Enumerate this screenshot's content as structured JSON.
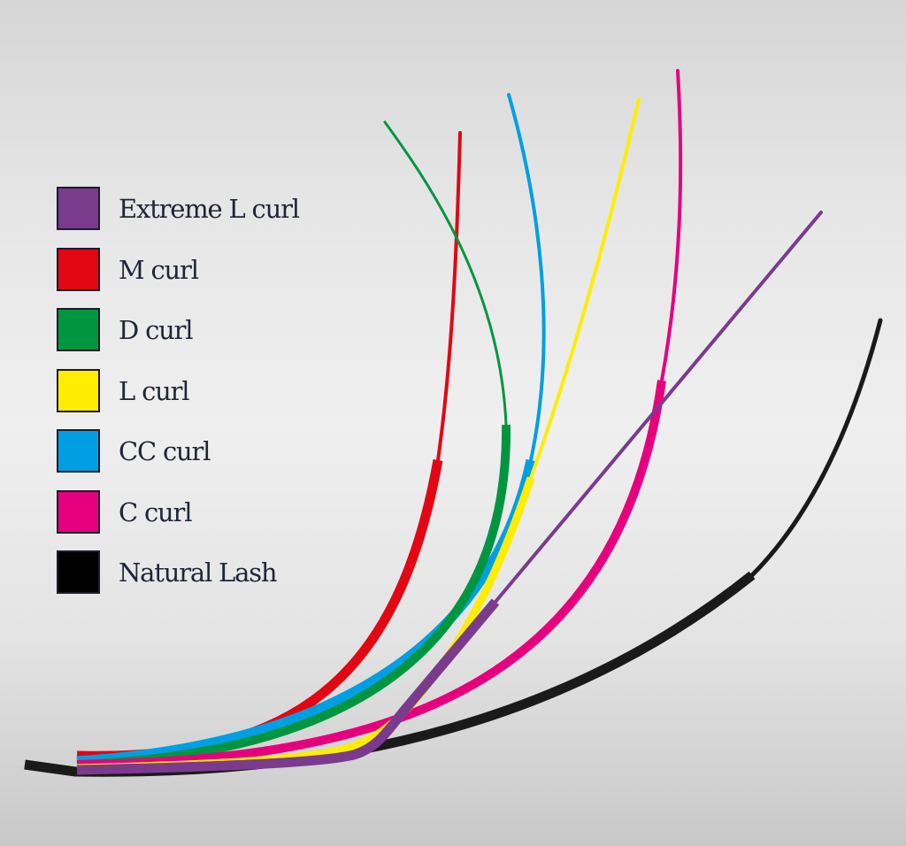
{
  "legend": {
    "items": [
      {
        "label": "Extreme L curl",
        "color": "#7b3b8d"
      },
      {
        "label": "M curl",
        "color": "#e30613"
      },
      {
        "label": "D curl",
        "color": "#009640"
      },
      {
        "label": "L curl",
        "color": "#ffed00"
      },
      {
        "label": "CC curl",
        "color": "#009fe3"
      },
      {
        "label": "C curl",
        "color": "#e6007e"
      },
      {
        "label": "Natural Lash",
        "color": "#000000"
      }
    ]
  },
  "lashes": [
    {
      "curl": "Natural Lash",
      "color": "#1a1a1a"
    },
    {
      "curl": "M curl",
      "color": "#e30613"
    },
    {
      "curl": "CC curl",
      "color": "#009fe3"
    },
    {
      "curl": "D curl",
      "color": "#009640"
    },
    {
      "curl": "C curl",
      "color": "#e6007e"
    },
    {
      "curl": "L curl",
      "color": "#ffed00"
    },
    {
      "curl": "Extreme L curl",
      "color": "#7b3b8d"
    }
  ]
}
